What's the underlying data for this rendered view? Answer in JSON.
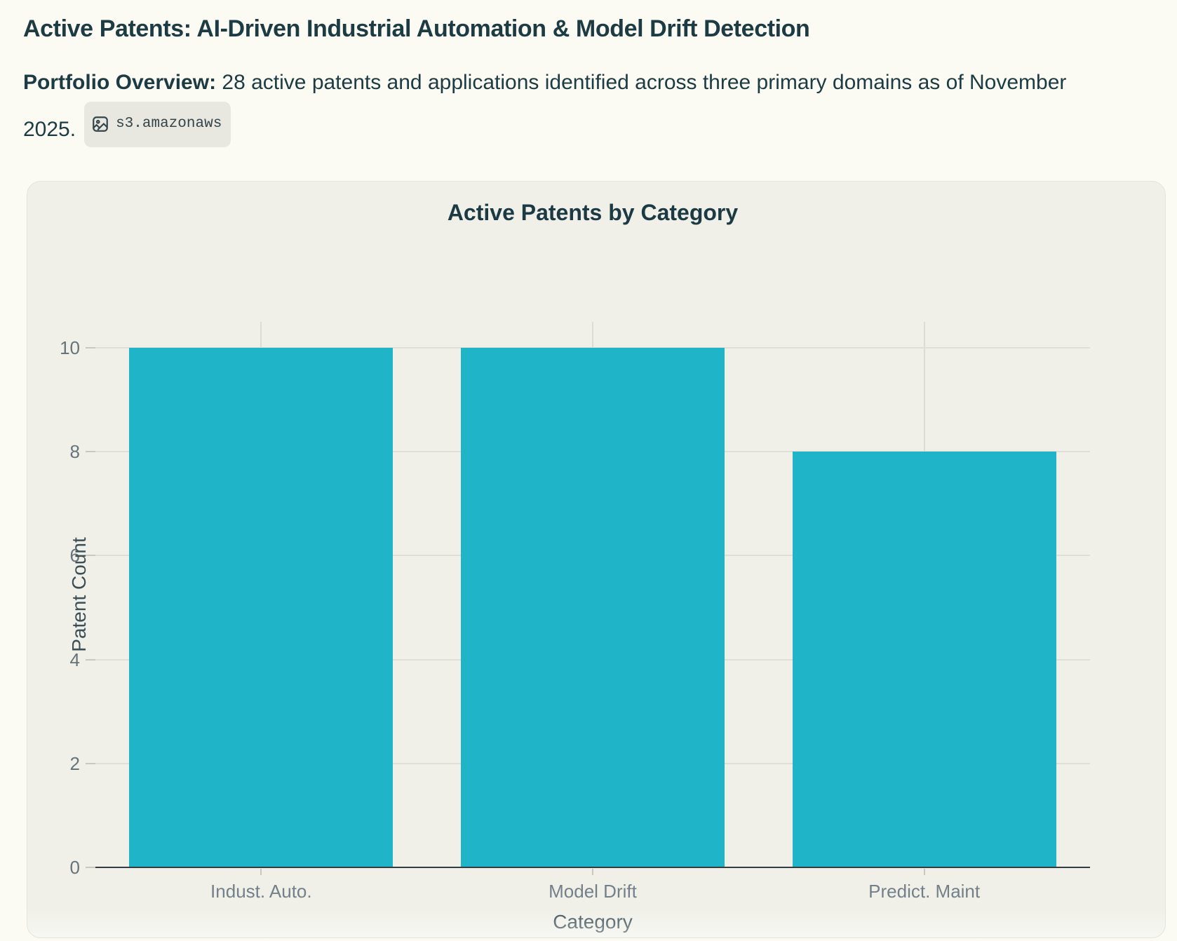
{
  "header": {
    "title": "Active Patents: AI-Driven Industrial Automation & Model Drift Detection",
    "overview_label": "Portfolio Overview:",
    "overview_body": "28 active patents and applications identified across three primary domains as of November 2025.",
    "citation": {
      "icon": "image-icon",
      "label": "s3.amazonaws"
    }
  },
  "theme": {
    "page_bg": "#FBFAF3",
    "card_bg": "#F0F0E9",
    "text_dark": "#1C3B43",
    "accent_teal": "#20B4C8",
    "tick_label_gray": "#73808A",
    "axis_line": "#333C40"
  },
  "chart_data": {
    "type": "bar",
    "title": "Active Patents by Category",
    "categories": [
      "Indust. Auto.",
      "Model Drift",
      "Predict. Maint"
    ],
    "values": [
      10,
      10,
      8
    ],
    "xlabel": "Category",
    "ylabel": "Patent Count",
    "yticks": [
      0,
      2,
      4,
      6,
      8,
      10
    ],
    "ylim": [
      0,
      10.5
    ],
    "bar_color": "#20B4C8",
    "bar_band_fraction": 0.795,
    "grid": true,
    "legend": false
  }
}
